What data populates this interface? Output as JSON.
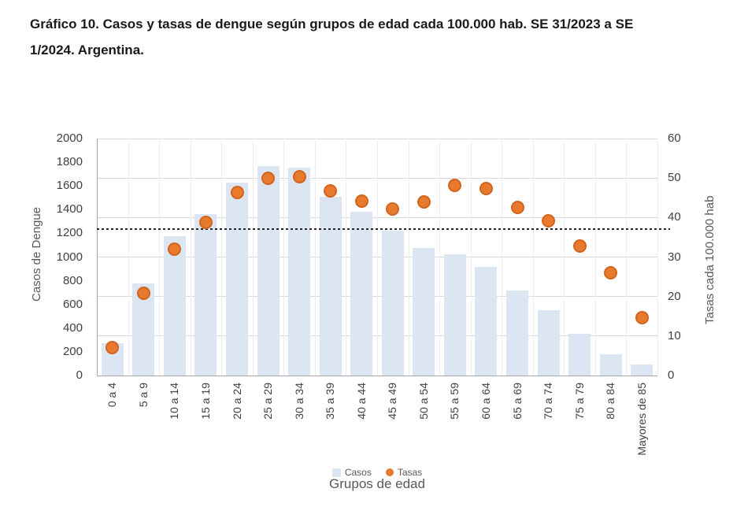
{
  "header": {
    "title_line1": "Gráfico 10. Casos y tasas de dengue según grupos de edad cada 100.000 hab. SE 31/2023 a SE",
    "title_line2": "1/2024. Argentina."
  },
  "chart_data": {
    "type": "bar",
    "subtype": "combo-bar-and-scatter-dual-axis",
    "categories": [
      "0 a 4",
      "5 a 9",
      "10 a 14",
      "15 a 19",
      "20 a 24",
      "25 a 29",
      "30 a 34",
      "35 a 39",
      "40 a 44",
      "45 a 49",
      "50 a 54",
      "55 a 59",
      "60 a 64",
      "65 a 69",
      "70 a 74",
      "75 a 79",
      "80 a 84",
      "Mayores de 85"
    ],
    "series": [
      {
        "name": "Casos",
        "type": "bar",
        "axis": "left",
        "values": [
          270,
          775,
          1175,
          1360,
          1630,
          1765,
          1755,
          1510,
          1380,
          1225,
          1075,
          1025,
          915,
          720,
          550,
          355,
          180,
          90
        ]
      },
      {
        "name": "Tasas",
        "type": "scatter",
        "axis": "right",
        "values": [
          7.0,
          20.9,
          32.0,
          38.8,
          46.4,
          49.9,
          50.4,
          46.7,
          44.1,
          42.1,
          44.0,
          48.1,
          47.3,
          42.6,
          39.2,
          32.8,
          26.1,
          14.7
        ]
      }
    ],
    "left_axis": {
      "label": "Casos de Dengue",
      "min": 0,
      "max": 2000,
      "step": 200
    },
    "right_axis": {
      "label": "Tasas  cada 100.000 hab",
      "min": 0,
      "max": 60,
      "step": 10
    },
    "xlabel": "Grupos de edad",
    "reference_line": {
      "value": 37,
      "axis": "right",
      "style": "black-dotted-horizontal"
    },
    "legend_position": "bottom",
    "grid": true,
    "colors": {
      "bar": "#dce6f2",
      "marker": "#e87a2e",
      "marker_border": "#d2641e",
      "gridline": "#d9d9d9",
      "axis_line": "#a6a6a6",
      "tick_text": "#404040",
      "axis_title": "#595959",
      "reference_line": "#262626",
      "title_text": "#1a1a1a"
    }
  }
}
